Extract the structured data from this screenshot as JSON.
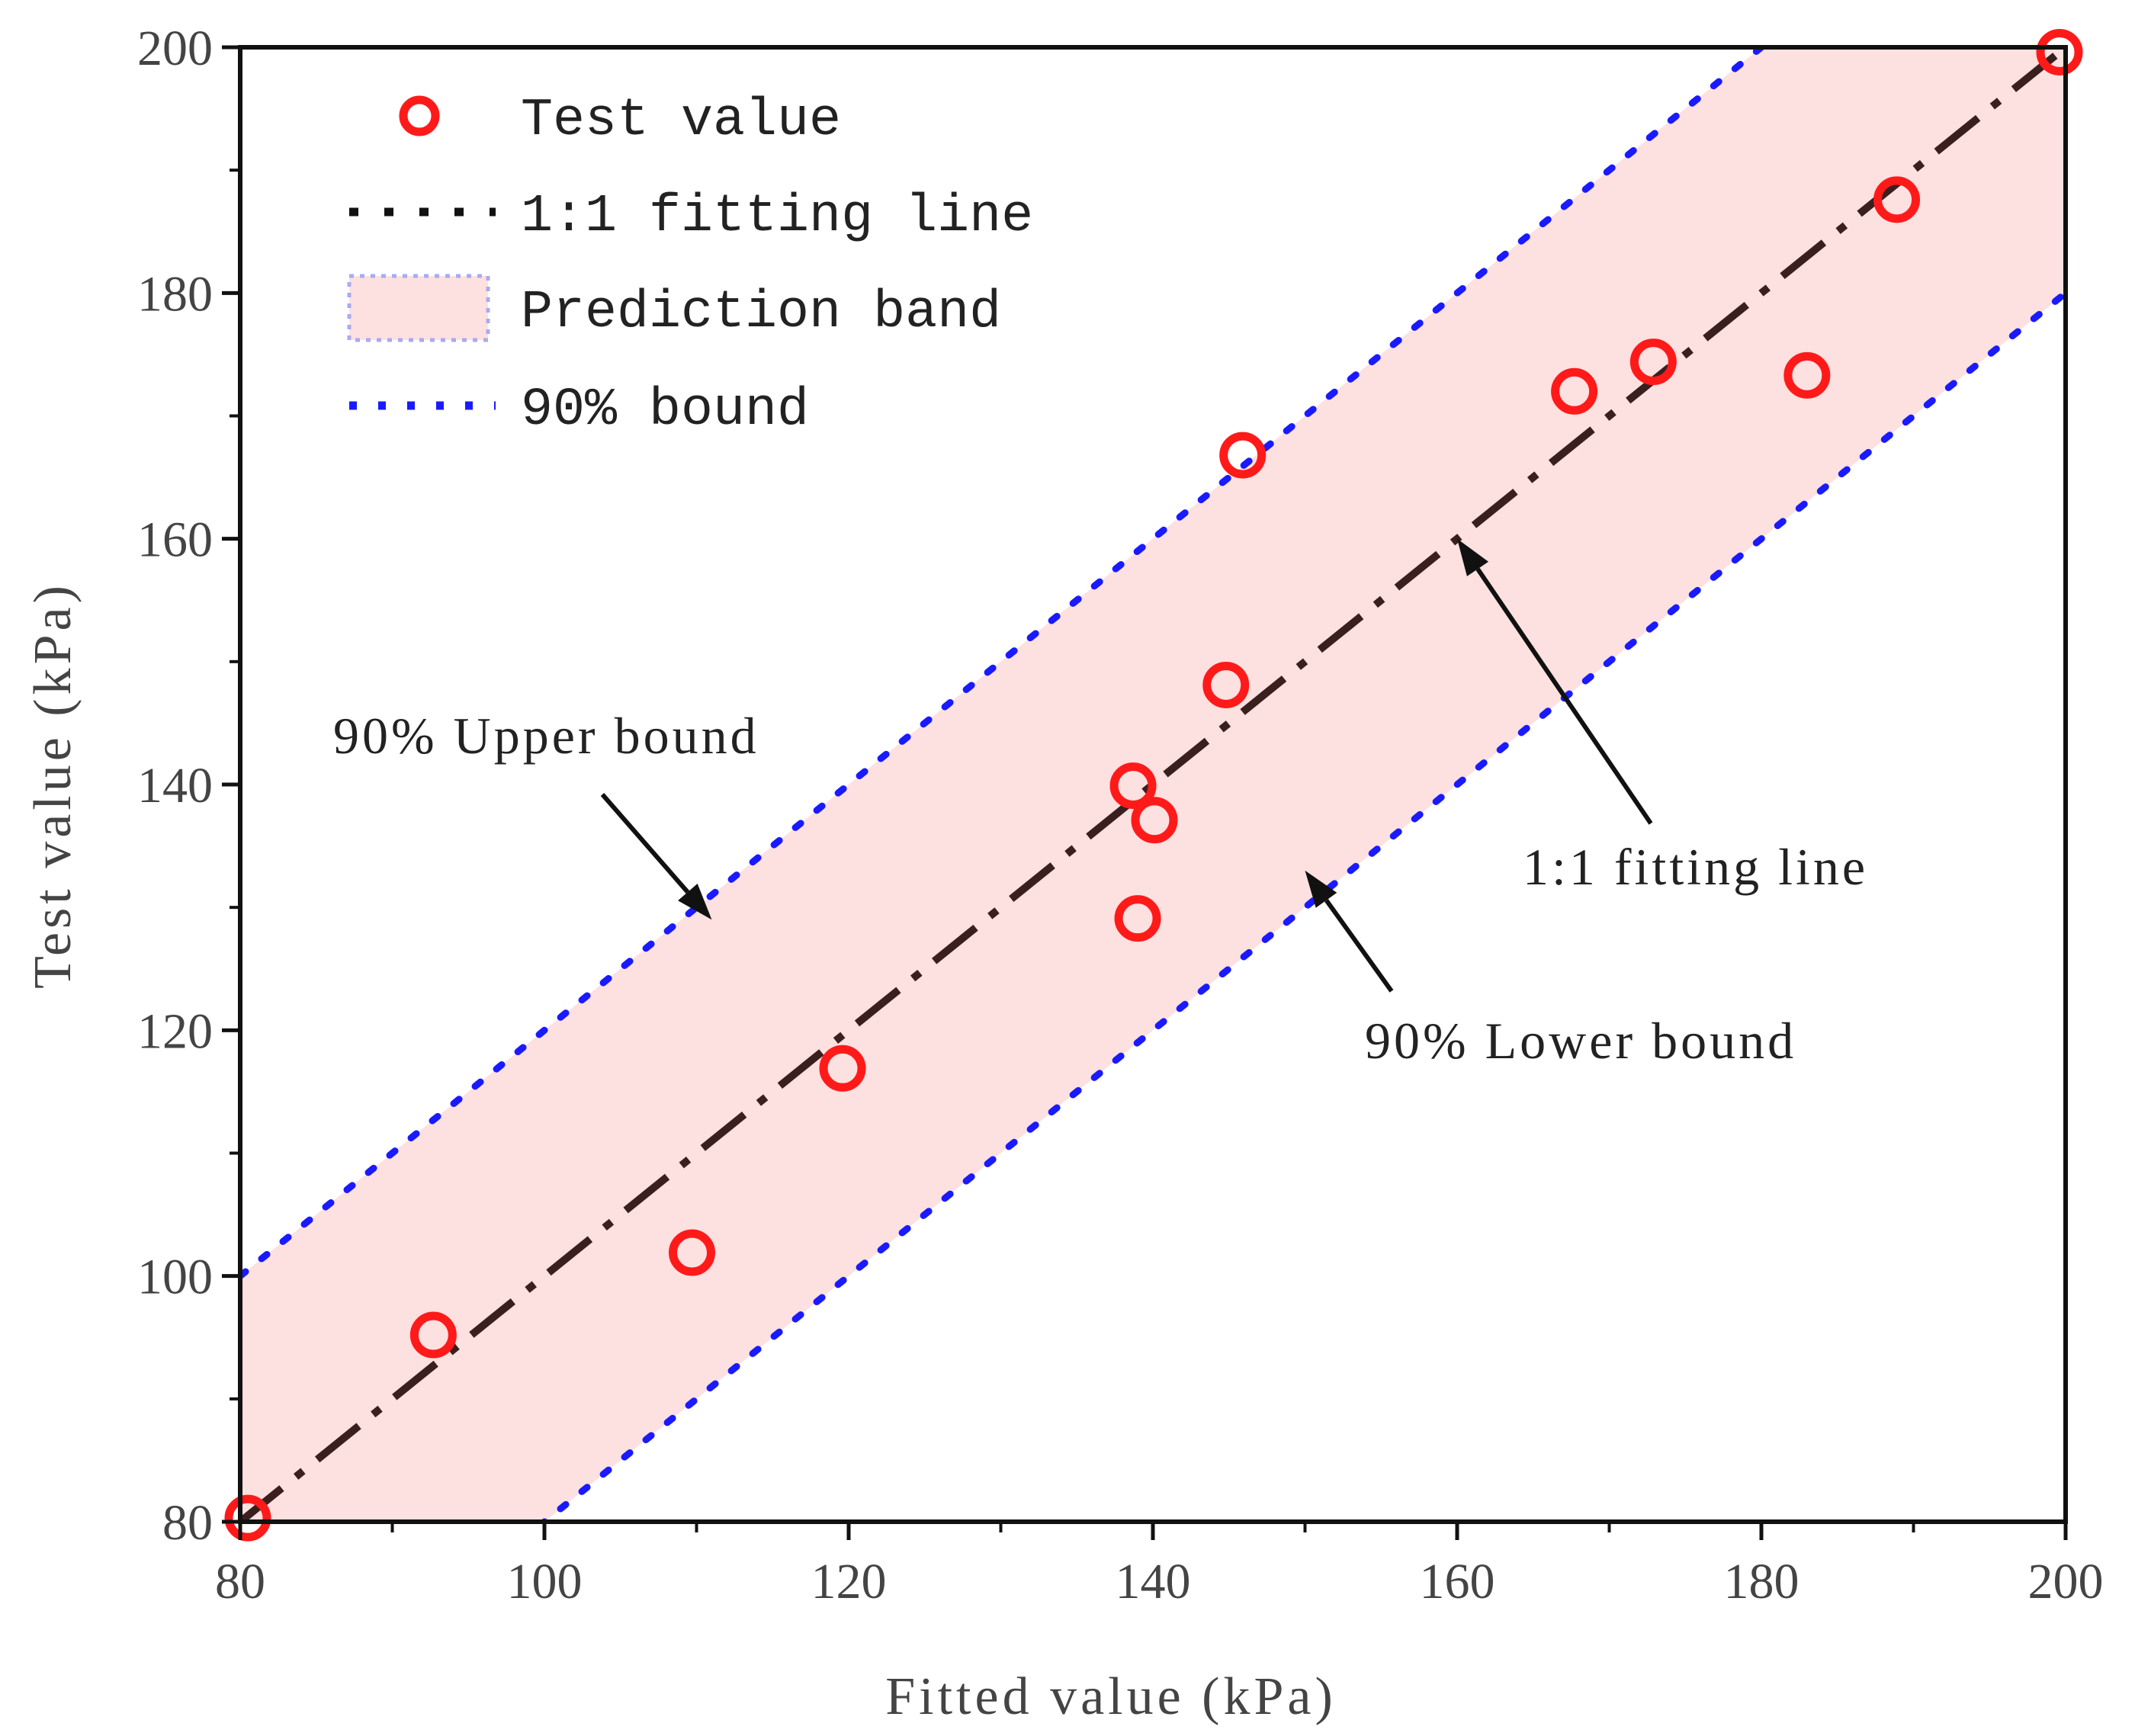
{
  "chart_data": {
    "type": "scatter",
    "title": "",
    "xlabel": "Fitted value (kPa)",
    "ylabel": "Test value (kPa)",
    "xlim": [
      80,
      200
    ],
    "ylim": [
      80,
      200
    ],
    "x_ticks": [
      80,
      100,
      120,
      140,
      160,
      180,
      200
    ],
    "y_ticks": [
      80,
      100,
      120,
      140,
      160,
      180,
      200
    ],
    "grid": false,
    "legend_position": "top-left",
    "series": [
      {
        "name": "Test value",
        "kind": "points",
        "marker": "open-circle",
        "color": "#ff1a1a",
        "x": [
          80.5,
          92.7,
          109.7,
          119.6,
          138.7,
          140.1,
          139.0,
          144.8,
          145.9,
          167.7,
          172.9,
          183.0,
          188.9,
          199.6
        ],
        "y": [
          80.3,
          95.2,
          101.9,
          116.9,
          139.9,
          137.1,
          129.1,
          148.1,
          166.8,
          172.0,
          174.4,
          173.3,
          187.6,
          199.6
        ]
      },
      {
        "name": "1:1 fitting line",
        "kind": "line",
        "style": "dash-dot",
        "color": "#3a1f1f",
        "x": [
          80,
          200
        ],
        "y": [
          80,
          200
        ]
      },
      {
        "name": "Prediction band",
        "kind": "band",
        "color": "#fde0e0",
        "offset": 20
      },
      {
        "name": "90% bound",
        "kind": "bounds",
        "style": "dotted",
        "color": "#1a1aff",
        "upper": {
          "x": [
            80,
            200
          ],
          "y": [
            100,
            220
          ]
        },
        "lower": {
          "x": [
            80,
            200
          ],
          "y": [
            60,
            180
          ]
        }
      }
    ],
    "annotations": [
      {
        "text": "90% Upper bound",
        "arrow_to": [
          111,
          129
        ]
      },
      {
        "text": "1:1 fitting line",
        "arrow_to": [
          160,
          160
        ]
      },
      {
        "text": "90% Lower bound",
        "arrow_to": [
          150,
          133
        ]
      }
    ]
  }
}
